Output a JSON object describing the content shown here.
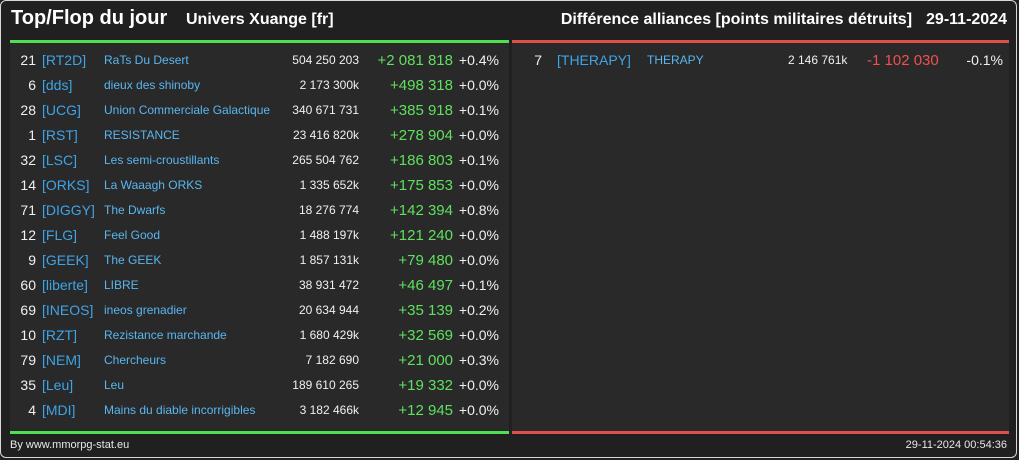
{
  "header": {
    "title": "Top/Flop du jour",
    "universe": "Univers Xuange [fr]",
    "subtitle": "Différence alliances [points militaires détruits]",
    "date": "29-11-2024"
  },
  "colors": {
    "positive": "#5fe05f",
    "negative": "#f05050",
    "tag": "#3ea4e8",
    "top_bar": "#4fe04f",
    "flop_bar": "#e0504a"
  },
  "top": [
    {
      "rank": "21",
      "tag": "[RT2D]",
      "name": "RaTs Du Desert",
      "total": "504 250 203",
      "diff": "+2 081 818",
      "pct": "+0.4%"
    },
    {
      "rank": "6",
      "tag": "[dds]",
      "name": "dieux des shinoby",
      "total": "2 173 300k",
      "diff": "+498 318",
      "pct": "+0.0%"
    },
    {
      "rank": "28",
      "tag": "[UCG]",
      "name": "Union Commerciale Galactique",
      "total": "340 671 731",
      "diff": "+385 918",
      "pct": "+0.1%"
    },
    {
      "rank": "1",
      "tag": "[RST]",
      "name": "RESISTANCE",
      "total": "23 416 820k",
      "diff": "+278 904",
      "pct": "+0.0%"
    },
    {
      "rank": "32",
      "tag": "[LSC]",
      "name": "Les semi-croustillants",
      "total": "265 504 762",
      "diff": "+186 803",
      "pct": "+0.1%"
    },
    {
      "rank": "14",
      "tag": "[ORKS]",
      "name": "La Waaagh ORKS",
      "total": "1 335 652k",
      "diff": "+175 853",
      "pct": "+0.0%"
    },
    {
      "rank": "71",
      "tag": "[DIGGY]",
      "name": "The Dwarfs",
      "total": "18 276 774",
      "diff": "+142 394",
      "pct": "+0.8%"
    },
    {
      "rank": "12",
      "tag": "[FLG]",
      "name": "Feel Good",
      "total": "1 488 197k",
      "diff": "+121 240",
      "pct": "+0.0%"
    },
    {
      "rank": "9",
      "tag": "[GEEK]",
      "name": "The GEEK",
      "total": "1 857 131k",
      "diff": "+79 480",
      "pct": "+0.0%"
    },
    {
      "rank": "60",
      "tag": "[liberte]",
      "name": "LIBRE",
      "total": "38 931 472",
      "diff": "+46 497",
      "pct": "+0.1%"
    },
    {
      "rank": "69",
      "tag": "[INEOS]",
      "name": "ineos grenadier",
      "total": "20 634 944",
      "diff": "+35 139",
      "pct": "+0.2%"
    },
    {
      "rank": "10",
      "tag": "[RZT]",
      "name": "Rezistance marchande",
      "total": "1 680 429k",
      "diff": "+32 569",
      "pct": "+0.0%"
    },
    {
      "rank": "79",
      "tag": "[NEM]",
      "name": "Chercheurs",
      "total": "7 182 690",
      "diff": "+21 000",
      "pct": "+0.3%"
    },
    {
      "rank": "35",
      "tag": "[Leu]",
      "name": "Leu",
      "total": "189 610 265",
      "diff": "+19 332",
      "pct": "+0.0%"
    },
    {
      "rank": "4",
      "tag": "[MDI]",
      "name": "Mains du diable incorrigibles",
      "total": "3 182 466k",
      "diff": "+12 945",
      "pct": "+0.0%"
    }
  ],
  "flop": [
    {
      "rank": "7",
      "tag": "[THERAPY]",
      "name": "THERAPY",
      "total": "2 146 761k",
      "diff": "-1 102 030",
      "pct": "-0.1%"
    }
  ],
  "footer": {
    "source": "By www.mmorpg-stat.eu",
    "timestamp": "29-11-2024 00:54:36"
  }
}
